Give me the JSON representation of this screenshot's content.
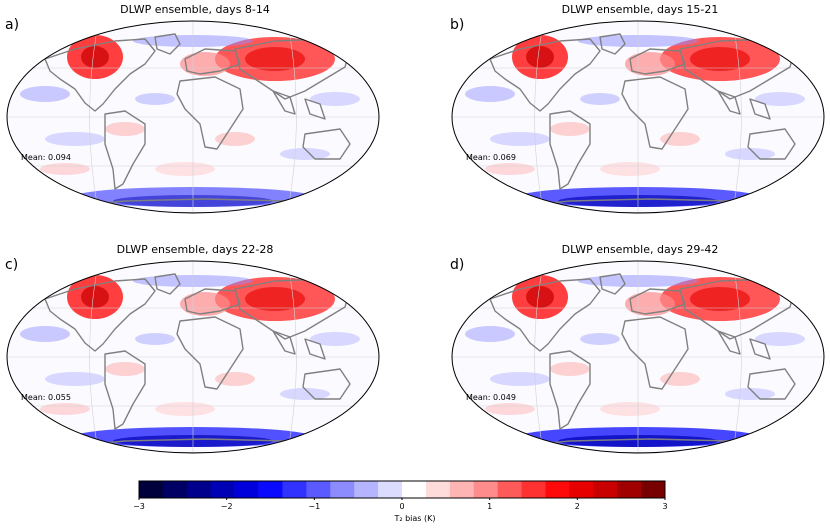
{
  "panels": [
    {
      "letter": "a)",
      "title": "DLWP ensemble, days 8-14",
      "mean": "Mean: 0.094",
      "antarctic_level": 0.6
    },
    {
      "letter": "b)",
      "title": "DLWP ensemble, days 15-21",
      "mean": "Mean: 0.069",
      "antarctic_level": 0.8
    },
    {
      "letter": "c)",
      "title": "DLWP ensemble, days 22-28",
      "mean": "Mean: 0.055",
      "antarctic_level": 0.85
    },
    {
      "letter": "d)",
      "title": "DLWP ensemble, days 29-42",
      "mean": "Mean: 0.049",
      "antarctic_level": 0.9
    }
  ],
  "colorbar": {
    "label": "T₂ bias (K)",
    "min": -3,
    "max": 3,
    "ticks": [
      "−3",
      "−2",
      "−1",
      "0",
      "1",
      "2",
      "3"
    ],
    "colors": [
      "#00003c",
      "#000064",
      "#00008c",
      "#0000b4",
      "#0000dc",
      "#0a0aff",
      "#3232ff",
      "#5a5aff",
      "#8c8cff",
      "#b4b4ff",
      "#dcdcff",
      "#ffffff",
      "#ffdcdc",
      "#ffb4b4",
      "#ff8c8c",
      "#ff5a5a",
      "#ff3232",
      "#ff0a0a",
      "#e60000",
      "#c80000",
      "#a00000",
      "#780000"
    ]
  }
}
